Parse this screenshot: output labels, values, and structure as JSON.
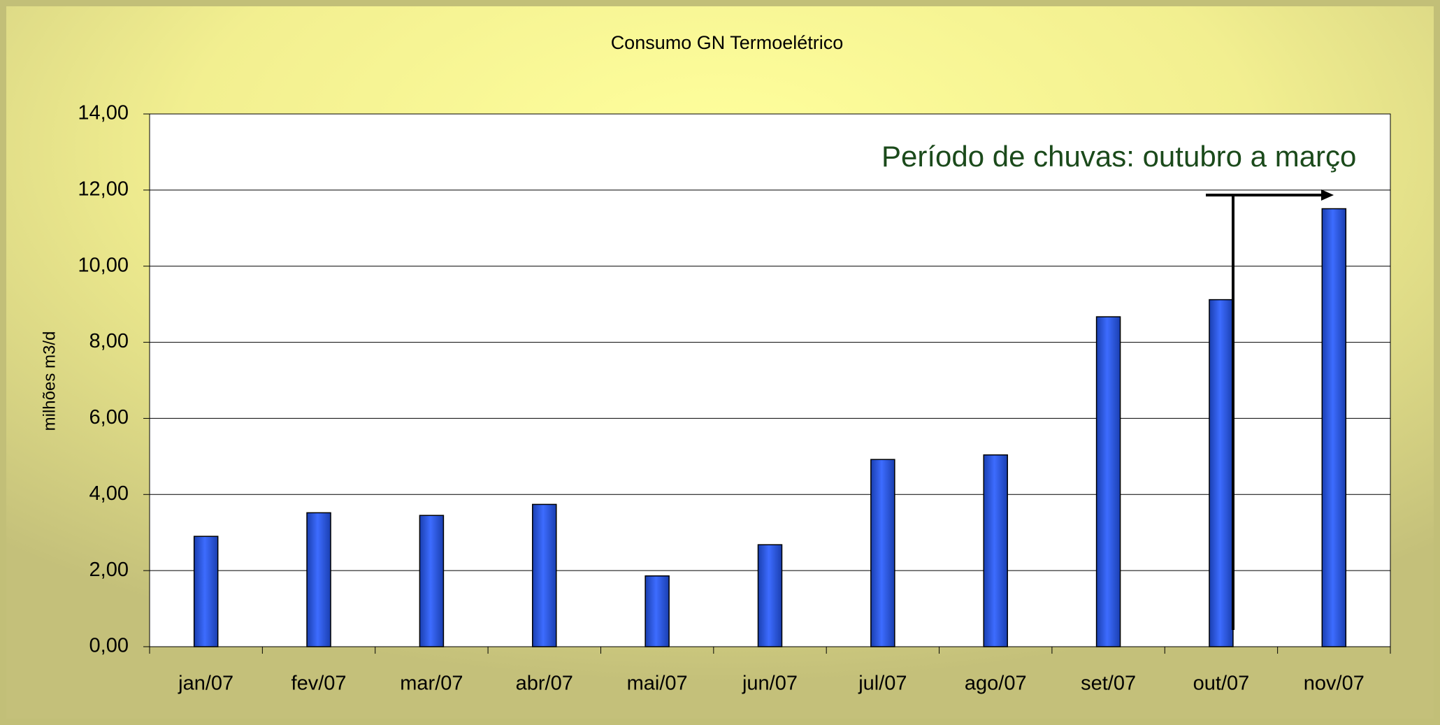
{
  "chart_data": {
    "type": "bar",
    "title": "Consumo GN Termoelétrico",
    "ylabel": "milhões m3/d",
    "annotation": "Período de chuvas: outubro a março",
    "categories": [
      "jan/07",
      "fev/07",
      "mar/07",
      "abr/07",
      "mai/07",
      "jun/07",
      "jul/07",
      "ago/07",
      "set/07",
      "out/07",
      "nov/07"
    ],
    "values": [
      2.9,
      3.52,
      3.45,
      3.74,
      1.86,
      2.68,
      4.92,
      5.04,
      8.67,
      9.12,
      11.51
    ],
    "color": "#2f5ff0",
    "ylim": [
      0,
      14
    ],
    "yticks": [
      {
        "value": 0,
        "label": "0,00"
      },
      {
        "value": 2,
        "label": "2,00"
      },
      {
        "value": 4,
        "label": "4,00"
      },
      {
        "value": 6,
        "label": "6,00"
      },
      {
        "value": 8,
        "label": "8,00"
      },
      {
        "value": 10,
        "label": "10,00"
      },
      {
        "value": 12,
        "label": "12,00"
      },
      {
        "value": 14,
        "label": "14,00"
      }
    ],
    "grid": true
  }
}
